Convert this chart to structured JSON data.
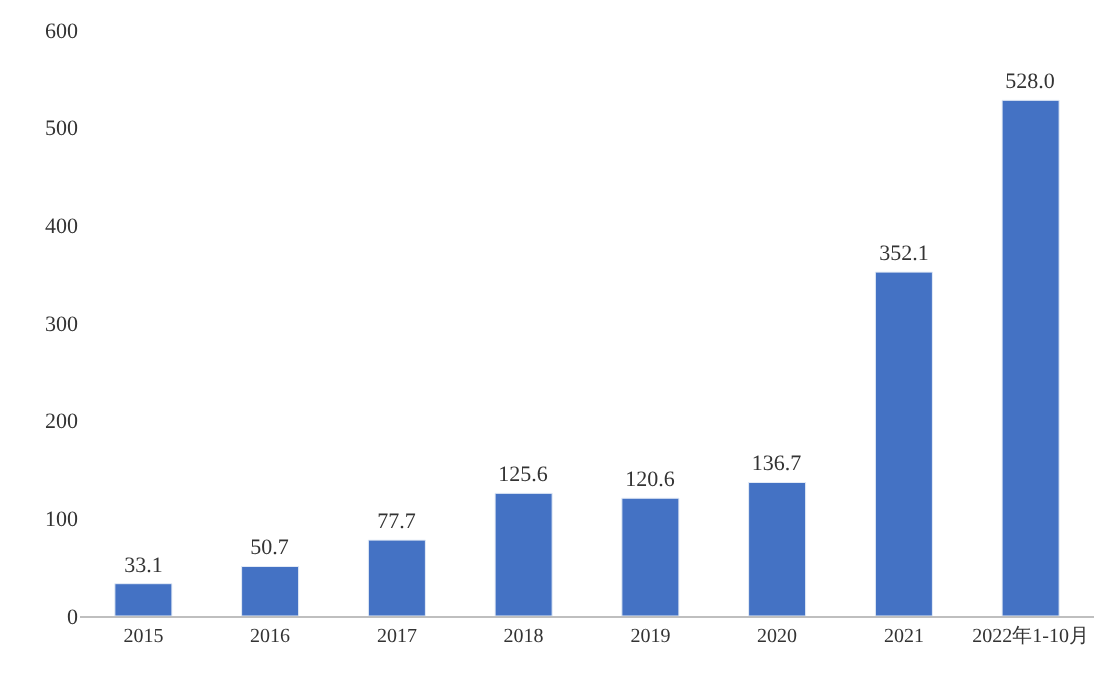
{
  "chart_data": {
    "type": "bar",
    "categories": [
      "2015",
      "2016",
      "2017",
      "2018",
      "2019",
      "2020",
      "2021",
      "2022年1-10月"
    ],
    "values": [
      33.1,
      50.7,
      77.7,
      125.6,
      120.6,
      136.7,
      352.1,
      528.0
    ],
    "value_labels": [
      "33.1",
      "50.7",
      "77.7",
      "125.6",
      "120.6",
      "136.7",
      "352.1",
      "528.0"
    ],
    "color": "#4472c4",
    "ylim": [
      0,
      600
    ],
    "yticks": [
      0,
      100,
      200,
      300,
      400,
      500,
      600
    ]
  }
}
